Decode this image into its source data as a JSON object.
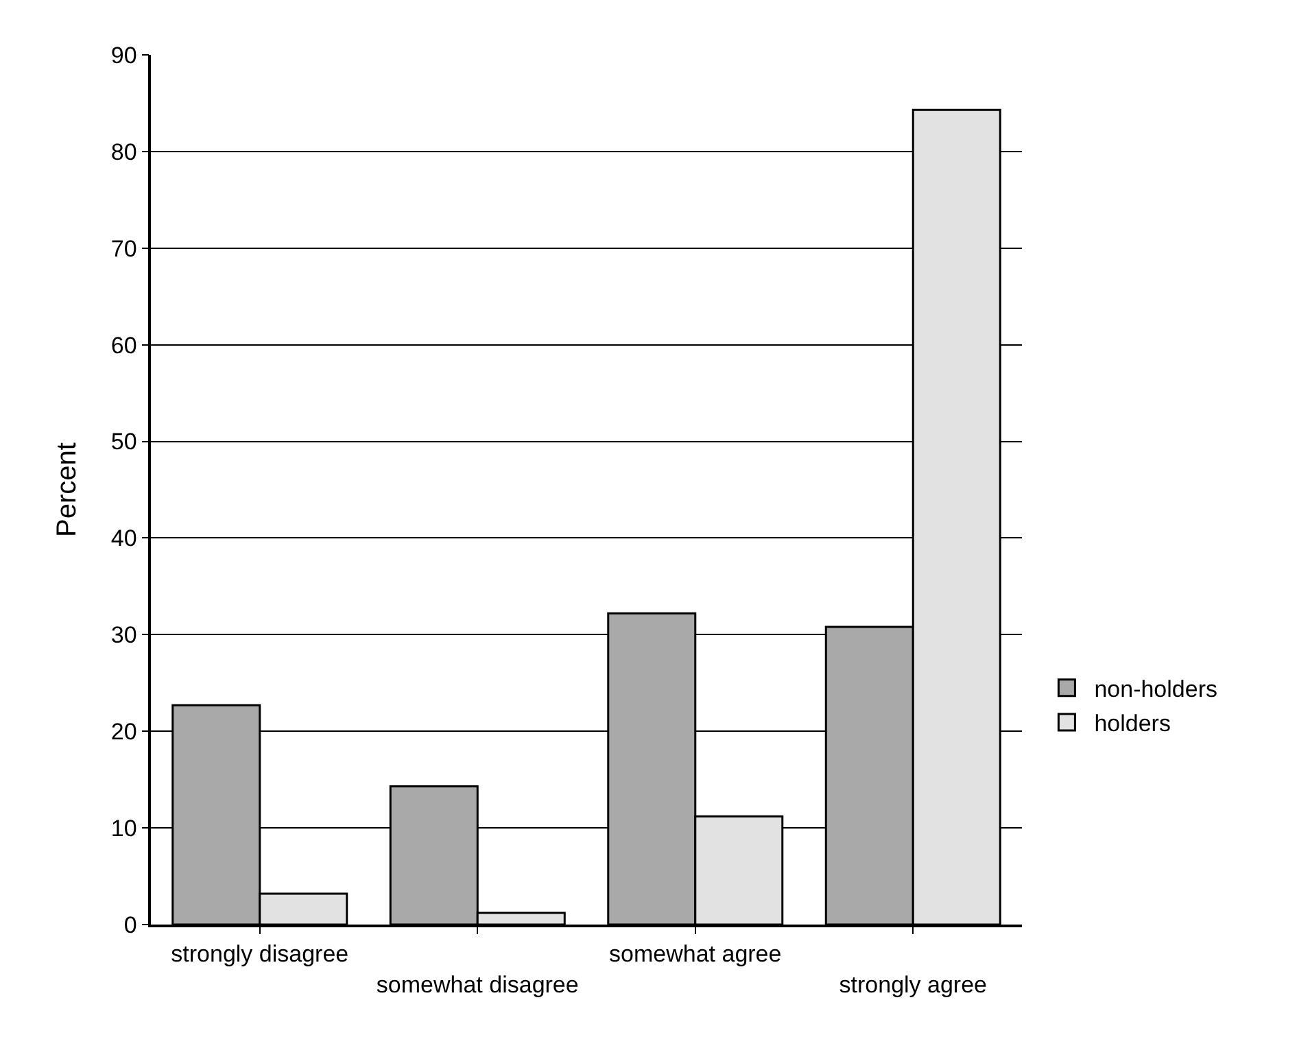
{
  "chart_data": {
    "type": "bar",
    "ylabel": "Percent",
    "categories": [
      "strongly disagree",
      "somewhat disagree",
      "somewhat agree",
      "strongly agree"
    ],
    "series": [
      {
        "name": "non-holders",
        "color": "#a9a9a9",
        "values": [
          22.7,
          14.3,
          32.2,
          30.8
        ]
      },
      {
        "name": "holders",
        "color": "#e2e2e2",
        "values": [
          3.2,
          1.2,
          11.2,
          84.3
        ]
      }
    ],
    "ylim": [
      0,
      90
    ],
    "yticks": [
      0,
      10,
      20,
      30,
      40,
      50,
      60,
      70,
      80,
      90
    ],
    "grid": "y",
    "legend": "right"
  }
}
